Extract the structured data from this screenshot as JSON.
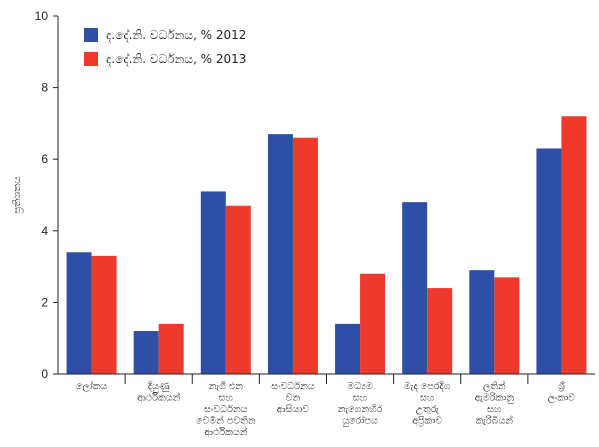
{
  "chart_data": {
    "type": "bar",
    "ylabel": "ප්‍රතිශතය",
    "ylim": [
      0,
      10
    ],
    "yticks": [
      0,
      2,
      4,
      6,
      8,
      10
    ],
    "grid": false,
    "legend_position": "top-left",
    "categories": [
      [
        "ලෝකය"
      ],
      [
        "දියුණු",
        "ආර්ථිකයන්"
      ],
      [
        "නැගී එන",
        "සහ",
        "සංවර්ධනය",
        "වෙමින් පවතින",
        "ආර්ථිකයන්"
      ],
      [
        "සංවර්ධනය",
        "වන",
        "ආසියාව"
      ],
      [
        "මධ්‍යම",
        "සහ",
        "නැගෙනහිර",
        "යුරෝපය"
      ],
      [
        "මැද පෙරදිග",
        "සහ",
        "උතුරු",
        "අප්‍රිකාව"
      ],
      [
        "ලතින්",
        "ඇමරිකානු",
        "සහ",
        "කැරිබියන්"
      ],
      [
        "ශ්‍රී",
        "ලංකාව"
      ]
    ],
    "series": [
      {
        "name": "ද.දේ.නි. වර්ධනය, % 2012",
        "color": "#2e4fa6",
        "values": [
          3.4,
          1.2,
          5.1,
          6.7,
          1.4,
          4.8,
          2.9,
          6.3
        ]
      },
      {
        "name": "ද.දේ.නි. වර්ධනය, % 2013",
        "color": "#ee3a2c",
        "values": [
          3.3,
          1.4,
          4.7,
          6.6,
          2.8,
          2.4,
          2.7,
          7.2
        ]
      }
    ]
  }
}
